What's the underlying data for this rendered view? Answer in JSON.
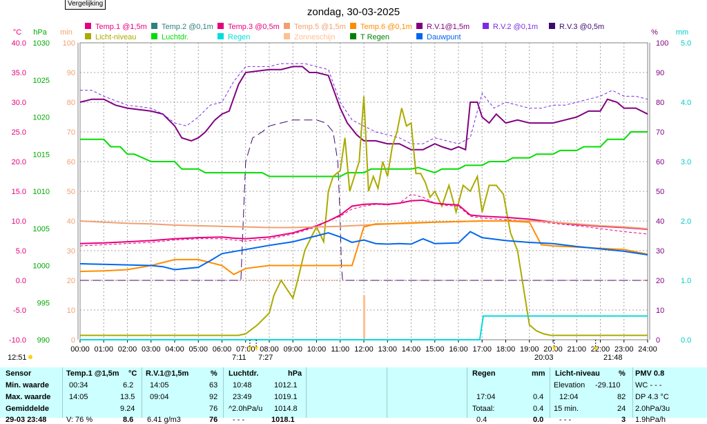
{
  "compare_button": "Vergelijking",
  "chart_data": {
    "type": "line",
    "title": "zondag, 30-03-2025",
    "x_ticks": [
      "00:00",
      "01:00",
      "02:00",
      "03:00",
      "04:00",
      "05:00",
      "06:00",
      "07:00",
      "08:00",
      "09:00",
      "10:00",
      "11:00",
      "12:00",
      "13:00",
      "14:00",
      "15:00",
      "16:00",
      "17:00",
      "18:00",
      "19:00",
      "20:00",
      "21:00",
      "22:00",
      "23:00",
      "24:00"
    ],
    "axes": {
      "temp": {
        "unit": "°C",
        "ticks": [
          "40.0",
          "35.0",
          "30.0",
          "25.0",
          "20.0",
          "15.0",
          "10.0",
          "5.0",
          "0.0",
          "-5.0",
          "-10.0"
        ],
        "range": [
          -10,
          40
        ],
        "color": "#e6007e"
      },
      "pressure": {
        "unit": "hPa",
        "ticks": [
          "1030",
          "1025",
          "1020",
          "1015",
          "1010",
          "1005",
          "1000",
          "995",
          "990"
        ],
        "range": [
          990,
          1030
        ],
        "color": "#00aa00"
      },
      "minutes": {
        "unit": "min",
        "ticks": [
          "100",
          "90",
          "80",
          "70",
          "60",
          "50",
          "40",
          "30",
          "20",
          "10",
          "0"
        ],
        "range": [
          0,
          100
        ],
        "color": "#f0a070"
      },
      "humidity": {
        "unit": "%",
        "ticks": [
          "100",
          "90",
          "80",
          "70",
          "60",
          "50",
          "40",
          "30",
          "20",
          "10",
          "0"
        ],
        "range": [
          0,
          100
        ],
        "color": "#800080"
      },
      "rain": {
        "unit": "mm",
        "ticks": [
          "5.0",
          "4.0",
          "3.0",
          "2.0",
          "1.0",
          "0.0"
        ],
        "range": [
          0,
          5
        ],
        "color": "#00cccc"
      }
    },
    "legend": [
      {
        "name": "Temp.1 @1,5m",
        "color": "#e6007e"
      },
      {
        "name": "Temp.2 @0,1m",
        "color": "#2f8080"
      },
      {
        "name": "Temp.3 @0,5m",
        "color": "#e6007e"
      },
      {
        "name": "Temp.5 @1,5m",
        "color": "#f0a070"
      },
      {
        "name": "Temp.6 @0,1m",
        "color": "#ff8c00"
      },
      {
        "name": "R.V.1@1,5m",
        "color": "#800080"
      },
      {
        "name": "R.V.2 @0,1m",
        "color": "#7b2be2"
      },
      {
        "name": "R.V.3 @0,5m",
        "color": "#3b0a6e"
      },
      {
        "name": "Licht-niveau",
        "color": "#aaaa00"
      },
      {
        "name": "Luchtdr.",
        "color": "#00dd00"
      },
      {
        "name": "Regen",
        "color": "#00dddd"
      },
      {
        "name": "Zonneschijn",
        "color": "#ffc090"
      },
      {
        "name": "T Regen",
        "color": "#008000"
      },
      {
        "name": "Dauwpunt",
        "color": "#0066ee"
      }
    ],
    "series": [
      {
        "name": "R.V.1@1,5m",
        "axis": "humidity",
        "color": "#800080",
        "x": [
          0,
          0.5,
          1,
          1.5,
          2,
          3,
          3.5,
          4,
          4.3,
          4.7,
          5,
          5.3,
          5.7,
          6,
          6.3,
          6.7,
          7,
          8,
          8.5,
          9,
          9.4,
          9.7,
          10,
          10.5,
          11,
          11.3,
          11.7,
          12,
          12.5,
          13,
          13.5,
          14,
          14.5,
          15,
          15.3,
          15.7,
          16,
          16.3,
          16.5,
          16.8,
          17,
          17.3,
          17.6,
          18,
          18.5,
          19,
          19.5,
          20,
          20.5,
          21,
          21.5,
          22,
          22.3,
          22.7,
          23,
          23.5,
          24
        ],
        "y": [
          80,
          81,
          81,
          79,
          78,
          77,
          76,
          72,
          68,
          67,
          68,
          70,
          74,
          76,
          77,
          86,
          90,
          91,
          91,
          92,
          92,
          90,
          90,
          89,
          78,
          73,
          69,
          67,
          67,
          66,
          66,
          64,
          64,
          66,
          65,
          64,
          65,
          64,
          80,
          80,
          75,
          73,
          76,
          73,
          74,
          73,
          73,
          73,
          74,
          75,
          77,
          77,
          81,
          80,
          78,
          78,
          76
        ]
      },
      {
        "name": "R.V.2 @0,1m",
        "axis": "humidity",
        "color": "#7b2be2",
        "dashed": true,
        "x": [
          0,
          0.5,
          1,
          2,
          3,
          3.5,
          4,
          4.5,
          5,
          5.5,
          6,
          6.5,
          7,
          8,
          8.5,
          9,
          9.5,
          10,
          10.5,
          11,
          11.5,
          12,
          12.5,
          13,
          13.5,
          14,
          14.5,
          15,
          15.5,
          16,
          16.5,
          17,
          17.5,
          18,
          18.5,
          19,
          19.5,
          20,
          20.5,
          21,
          21.5,
          22,
          22.5,
          23,
          23.5,
          24
        ],
        "y": [
          84,
          84,
          82,
          79,
          78,
          76,
          73,
          72,
          75,
          79,
          80,
          87,
          92,
          92,
          93,
          93,
          93,
          92,
          91,
          80,
          74,
          72,
          70,
          69,
          68,
          66,
          66,
          68,
          67,
          66,
          68,
          83,
          78,
          80,
          79,
          78,
          78,
          79,
          79,
          80,
          81,
          82,
          84,
          82,
          82,
          81
        ]
      },
      {
        "name": "R.V.3 @0,5m",
        "axis": "humidity",
        "color": "#3b0a6e",
        "dashed": true,
        "x": [
          0,
          6.8,
          6.9,
          7,
          7.3,
          7.7,
          8,
          8.5,
          9,
          9.5,
          10,
          10.4,
          10.7,
          10.9,
          11,
          11.05,
          11.1,
          11.2,
          24
        ],
        "y": [
          20,
          20,
          40,
          60,
          68,
          70,
          72,
          73,
          74,
          74,
          74,
          73,
          70,
          60,
          40,
          25,
          20,
          20,
          20
        ]
      },
      {
        "name": "Luchtdr.",
        "axis": "pressure",
        "color": "#00dd00",
        "x": [
          0,
          1,
          1.3,
          1.7,
          2,
          2.3,
          3,
          4,
          4.3,
          5,
          5.3,
          6,
          7,
          7.7,
          8,
          9,
          10,
          10.3,
          11,
          11.3,
          12,
          12.3,
          13,
          13.3,
          14,
          14.3,
          15,
          15.3,
          16,
          16.3,
          17,
          17.3,
          18,
          18.3,
          19,
          19.3,
          20,
          20.3,
          21,
          21.3,
          22,
          22.3,
          23,
          23.3,
          24
        ],
        "y": [
          1017,
          1017,
          1016,
          1016,
          1015,
          1015,
          1014,
          1014,
          1013,
          1013,
          1012.5,
          1012.5,
          1012.5,
          1012.5,
          1012,
          1012,
          1012,
          1012,
          1012,
          1012.5,
          1012.5,
          1013,
          1013,
          1013,
          1013,
          1013.2,
          1012.5,
          1013,
          1013,
          1013.5,
          1013.5,
          1014,
          1014,
          1014.5,
          1014.5,
          1015,
          1015,
          1015.5,
          1015.5,
          1016,
          1016,
          1017,
          1017,
          1018,
          1018
        ]
      },
      {
        "name": "Licht-niveau",
        "axis": "minutes",
        "color": "#aaaa00",
        "x": [
          0,
          6.7,
          7,
          7.5,
          8,
          8.2,
          8.5,
          9,
          9.2,
          9.5,
          9.8,
          10,
          10.3,
          10.5,
          10.7,
          11,
          11.2,
          11.4,
          11.6,
          11.8,
          12,
          12.2,
          12.4,
          12.6,
          12.8,
          13,
          13.2,
          13.4,
          13.6,
          13.8,
          14,
          14.2,
          14.4,
          14.6,
          14.8,
          15,
          15.3,
          15.6,
          15.9,
          16.2,
          16.5,
          16.8,
          17,
          17.3,
          17.6,
          17.9,
          18.2,
          18.5,
          18.8,
          19,
          19.3,
          19.6,
          19.9,
          20.2,
          20.6,
          21,
          22,
          23,
          24
        ],
        "y": [
          1.5,
          1.5,
          2,
          5,
          9,
          15,
          20,
          14,
          20,
          30,
          35,
          38,
          33,
          50,
          55,
          57,
          68,
          50,
          55,
          60,
          82,
          50,
          55,
          51,
          60,
          55,
          65,
          70,
          78,
          72,
          73,
          56,
          56,
          53,
          48,
          50,
          45,
          52,
          43,
          52,
          50,
          55,
          43,
          52,
          52,
          49,
          36,
          30,
          15,
          5,
          3,
          2,
          1.5,
          1.5,
          1.5,
          1.5,
          1.5,
          1.5,
          1.5
        ]
      },
      {
        "name": "Temp.1 @1,5m",
        "axis": "temp",
        "color": "#e6007e",
        "x": [
          0,
          1,
          2,
          3,
          4,
          5,
          6,
          6.5,
          7,
          8,
          9,
          10,
          10.5,
          11,
          11.5,
          12,
          12.5,
          13,
          13.5,
          14,
          14.5,
          15,
          15.5,
          16,
          16.5,
          17,
          18,
          19,
          20,
          21,
          22,
          23,
          24
        ],
        "y": [
          6.2,
          6.3,
          6.5,
          6.7,
          7,
          7.2,
          7.3,
          7.1,
          7,
          7.3,
          8,
          9.2,
          10,
          11,
          12.5,
          12.8,
          12.9,
          12.8,
          13,
          13.4,
          13.5,
          13,
          12.8,
          12.7,
          11,
          10.8,
          10.6,
          10.3,
          9.8,
          9.4,
          9.1,
          8.9,
          8.6
        ]
      },
      {
        "name": "Temp.3 @0,5m",
        "axis": "temp",
        "color": "#e6007e",
        "dashed": true,
        "x": [
          0,
          1,
          2,
          3,
          4,
          5,
          6,
          7,
          8,
          9,
          10,
          10.5,
          11,
          11.5,
          12,
          12.5,
          13,
          13.5,
          14,
          14.5,
          15,
          15.5,
          16,
          16.5,
          17,
          18,
          19,
          20,
          21,
          22,
          23,
          24
        ],
        "y": [
          5.8,
          6,
          6.2,
          6.4,
          6.8,
          7,
          7,
          6.6,
          7,
          7.8,
          9,
          10,
          10.8,
          12,
          12.5,
          12.8,
          12.7,
          13,
          14.5,
          14,
          13,
          12.6,
          12.5,
          10.8,
          10.5,
          10.2,
          10,
          9.6,
          9.2,
          8.7,
          8.2,
          7.8
        ]
      },
      {
        "name": "Temp.5 @1,5m",
        "axis": "temp",
        "color": "#f0a070",
        "x": [
          0,
          1,
          2,
          3,
          4,
          5,
          6,
          7,
          8,
          9,
          10,
          11,
          12,
          13,
          14,
          15,
          16,
          17,
          18,
          19,
          20,
          21,
          22,
          23,
          24
        ],
        "y": [
          10,
          9.8,
          9.6,
          9.5,
          9.3,
          9.2,
          9.1,
          9,
          8.9,
          8.9,
          9,
          9.1,
          9.3,
          9.5,
          9.6,
          9.8,
          9.9,
          10,
          10,
          10,
          9.8,
          9.5,
          9.2,
          9,
          8.7
        ]
      },
      {
        "name": "Temp.6 @0,1m",
        "axis": "temp",
        "color": "#ff8c00",
        "x": [
          0,
          1,
          2,
          3,
          4,
          5,
          6,
          6.5,
          7,
          8,
          9,
          10,
          11,
          11.5,
          12,
          12.5,
          13,
          14,
          15,
          16,
          17,
          18,
          19,
          19.5,
          20,
          21,
          22,
          23,
          24
        ],
        "y": [
          1.5,
          1.6,
          1.8,
          2.5,
          3.5,
          3.5,
          2.5,
          1,
          2,
          2.5,
          2.5,
          2.5,
          2.5,
          2.5,
          9,
          9.5,
          9.5,
          9.7,
          9.8,
          9.9,
          10,
          10,
          9.8,
          6,
          5.8,
          5.6,
          5.4,
          5.2,
          4.4
        ]
      },
      {
        "name": "Dauwpunt",
        "axis": "temp",
        "color": "#0066ee",
        "x": [
          0,
          1,
          2,
          3,
          3.5,
          4,
          4.5,
          5,
          5.5,
          6,
          7,
          8,
          9,
          10,
          10.5,
          11,
          11.5,
          12,
          12.5,
          13,
          13.5,
          14,
          14.5,
          15,
          16,
          16.5,
          17,
          18,
          19,
          20,
          21,
          22,
          23,
          24
        ],
        "y": [
          2.8,
          2.7,
          2.6,
          2.5,
          2.3,
          1.8,
          2,
          2.2,
          3.3,
          4.5,
          5.2,
          5.9,
          6.5,
          7.5,
          8,
          7.3,
          6.4,
          6.8,
          6.2,
          6.1,
          6.2,
          6.1,
          7,
          6.2,
          6.3,
          8.2,
          7.2,
          6.7,
          6.4,
          6.2,
          5.7,
          5.3,
          4.9,
          4.3
        ]
      },
      {
        "name": "Regen",
        "axis": "rain",
        "color": "#00dddd",
        "x": [
          0,
          16.9,
          17.05,
          17.1,
          24
        ],
        "y": [
          0,
          0,
          0.4,
          0.4,
          0.4
        ]
      }
    ],
    "sunshine_bar": {
      "x": 12.0,
      "minutes": 15
    },
    "markers_bottom": [
      {
        "label": "12:51",
        "pos": "left"
      },
      {
        "label": "7:11",
        "x": 7.18
      },
      {
        "label": "7:27",
        "x": 7.45
      },
      {
        "label": "20:03",
        "x": 20.05
      },
      {
        "label": "21:48",
        "x": 21.8
      }
    ]
  },
  "table": {
    "row_labels": [
      "Sensor",
      "Min. waarde",
      "Max. waarde",
      "Gemiddelde",
      "29-03 23:48"
    ],
    "temp": {
      "header": "Temp.1 @1,5m",
      "unit": "°C",
      "min_time": "00:34",
      "min": "6.2",
      "max_time": "14:05",
      "max": "13.5",
      "avg": "9.24",
      "last_label": "V: 76 %",
      "last": "8.6"
    },
    "rv": {
      "header": "R.V.1@1,5m",
      "unit": "%",
      "min_time": "14:05",
      "min": "63",
      "max_time": "09:04",
      "max": "92",
      "avg": "76",
      "last_label": "6.41 g/m3",
      "last": "76"
    },
    "pressure": {
      "header": "Luchtdr.",
      "unit": "hPa",
      "min_time": "10:48",
      "min": "1012.1",
      "max_time": "23:49",
      "max": "1019.1",
      "trend_label": "^2.0hPa/u",
      "avg": "1014.8",
      "last_label": "- - -",
      "last": "1018.1"
    },
    "rain": {
      "header": "Regen",
      "unit": "mm",
      "time": "17:04",
      "value": "0.4",
      "total_label": "Totaal:",
      "total": "0.4",
      "last_label": "0.4",
      "last": "0.0"
    },
    "light": {
      "header": "Licht-niveau",
      "unit": "%",
      "elev_label": "Elevation",
      "elev": "-29.110",
      "time": "12:04",
      "value": "82",
      "min15_label": "15 min.",
      "min15": "24",
      "last_label": "- - -",
      "last": "3"
    },
    "pmv": {
      "header": "PMV 0.8",
      "line1": "WC - - -",
      "line2": "DP 4.3 °C",
      "line3": "2.0hPa/3u",
      "line4": "1.9hPa/h"
    }
  }
}
